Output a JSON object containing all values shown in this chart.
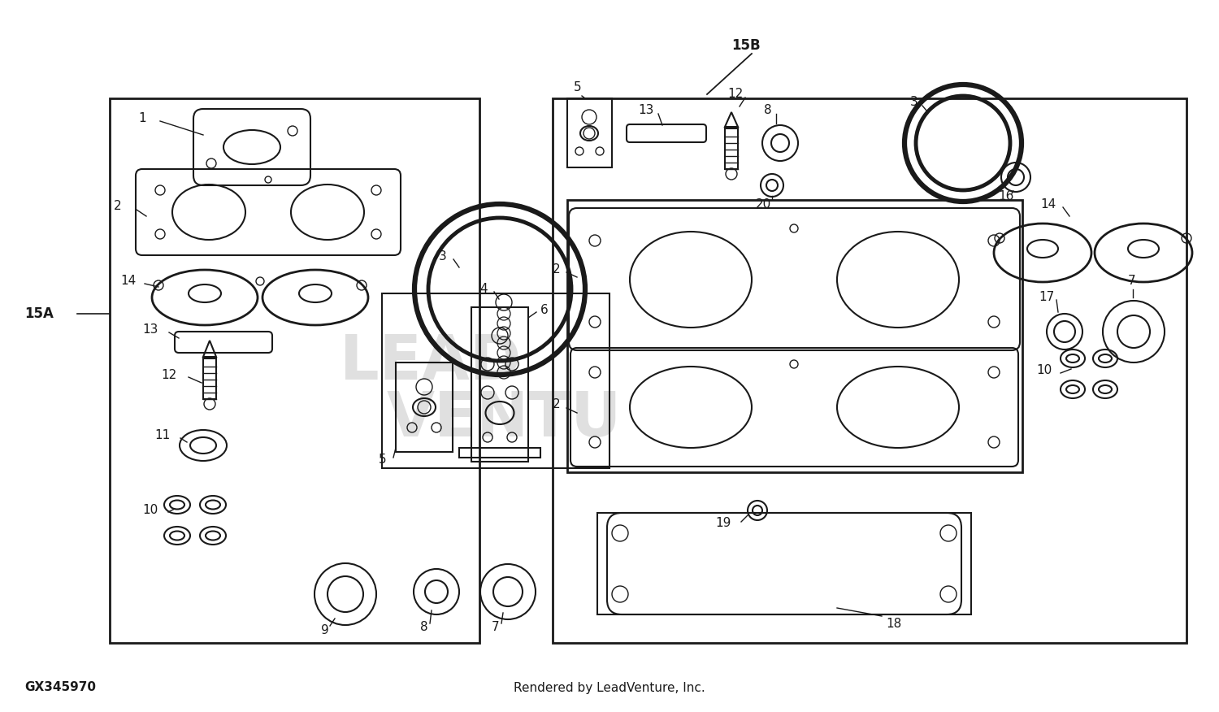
{
  "bg_color": "#ffffff",
  "line_color": "#1a1a1a",
  "watermark_color": "#d4d4d4",
  "footer_left": "GX345970",
  "footer_right": "Rendered by LeadVenture, Inc.",
  "label_15B": "15B",
  "label_15A": "15A",
  "figsize": [
    15.0,
    8.76
  ],
  "dpi": 100
}
